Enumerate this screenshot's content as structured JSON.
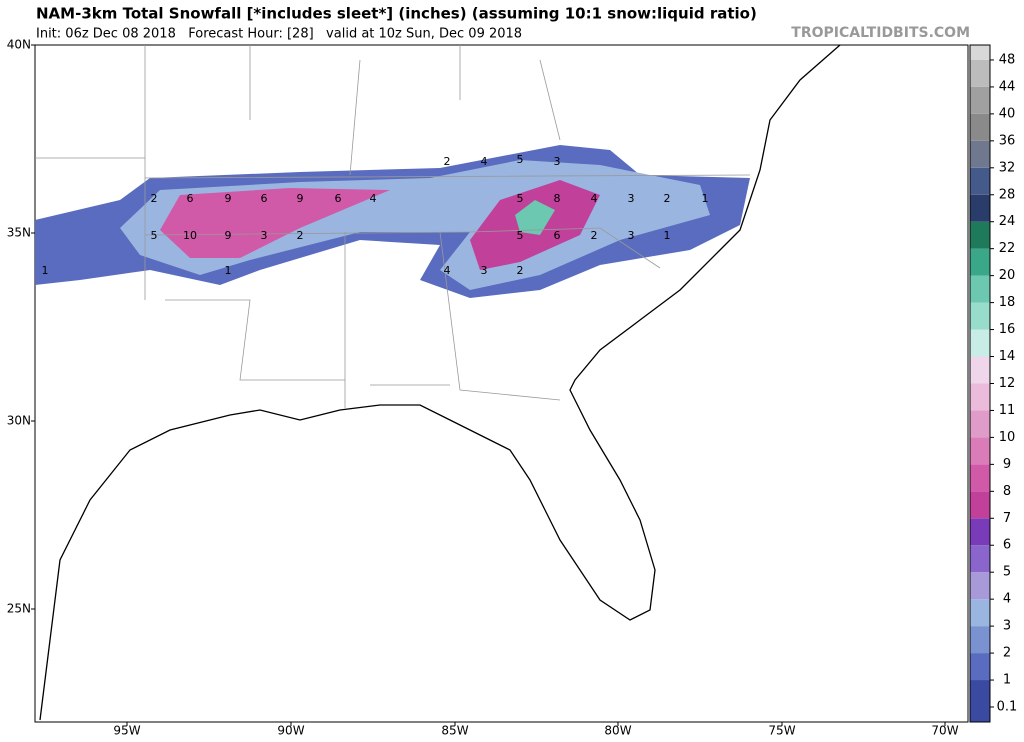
{
  "header": {
    "title": "NAM-3km Total Snowfall [*includes sleet*] (inches) (assuming 10:1 snow:liquid ratio)",
    "subtitle": "Init: 06z Dec 08 2018   Forecast Hour: [28]   valid at 10z Sun, Dec 09 2018",
    "watermark": "TROPICALTIDBITS.COM"
  },
  "map": {
    "lat_labels": [
      "40N",
      "35N",
      "30N",
      "25N"
    ],
    "lon_labels": [
      "95W",
      "90W",
      "85W",
      "80W",
      "75W",
      "70W"
    ],
    "contour_labels": [
      "2",
      "4",
      "5",
      "3",
      "2",
      "6",
      "9",
      "6",
      "9",
      "6",
      "4",
      "5",
      "8",
      "4",
      "3",
      "2",
      "1",
      "5",
      "10",
      "9",
      "3",
      "2",
      "5",
      "6",
      "2",
      "3",
      "1",
      "1",
      "1",
      "4",
      "3",
      "2"
    ]
  },
  "colorbar": {
    "levels": [
      0.1,
      1,
      2,
      3,
      4,
      5,
      6,
      7,
      8,
      9,
      10,
      11,
      12,
      14,
      16,
      18,
      20,
      22,
      24,
      28,
      32,
      36,
      40,
      44,
      48
    ],
    "colors": [
      "#3a4aa0",
      "#5a6cbf",
      "#7a93d0",
      "#9ab6e0",
      "#a89ad8",
      "#8a66cc",
      "#7a3bb8",
      "#c0409a",
      "#d05aa8",
      "#d97cb8",
      "#e09cc8",
      "#ebbbdc",
      "#f0d6ea",
      "#c8ece6",
      "#98dccc",
      "#6cc8b0",
      "#3aa888",
      "#1f7a5c",
      "#2a3d6a",
      "#445a8a",
      "#707890",
      "#8a8a8a",
      "#a0a0a0",
      "#bcbcbc",
      "#d8d8d8"
    ]
  }
}
